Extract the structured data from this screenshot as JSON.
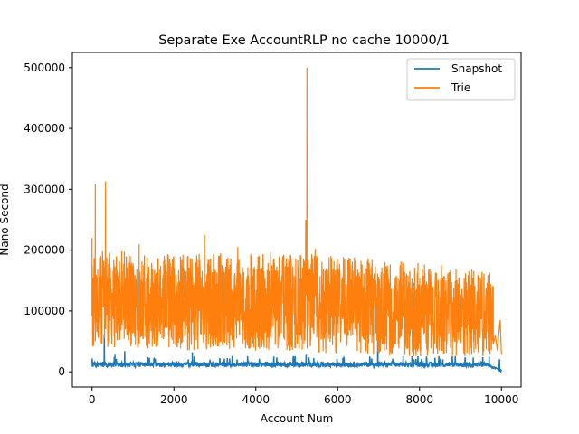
{
  "chart_data": {
    "type": "line",
    "title": "Separate Exe AccountRLP no cache 10000/1",
    "xlabel": "Account Num",
    "ylabel": "Nano Second",
    "xlim": [
      -480,
      10480
    ],
    "ylim": [
      -25000,
      525000
    ],
    "x_ticks": [
      0,
      2000,
      4000,
      6000,
      8000,
      10000
    ],
    "x_tick_labels": [
      "0",
      "2000",
      "4000",
      "6000",
      "8000",
      "10000"
    ],
    "y_ticks": [
      0,
      100000,
      200000,
      300000,
      400000,
      500000
    ],
    "y_tick_labels": [
      "0",
      "100000",
      "200000",
      "300000",
      "400000",
      "500000"
    ],
    "grid": false,
    "legend_position": "top-right",
    "series": [
      {
        "name": "Snapshot",
        "color": "#1f77b4",
        "pattern": {
          "x_end": 10000,
          "baseline": 12000,
          "band_low": 5000,
          "band_high": 20000,
          "taper_start": 9600,
          "taper_end_value": 2000,
          "spikes": [
            {
              "x": 5,
              "y": 22000
            },
            {
              "x": 300,
              "y": 62000
            },
            {
              "x": 560,
              "y": 28000
            },
            {
              "x": 800,
              "y": 34000
            },
            {
              "x": 2450,
              "y": 32000
            },
            {
              "x": 5230,
              "y": 28000
            },
            {
              "x": 6980,
              "y": 58000
            },
            {
              "x": 7600,
              "y": 26000
            },
            {
              "x": 9700,
              "y": 25000
            },
            {
              "x": 9950,
              "y": 20000
            }
          ]
        }
      },
      {
        "name": "Trie",
        "color": "#ff7f0e",
        "pattern": {
          "x_end": 10000,
          "dense_end": 9800,
          "segments": [
            {
              "x": 0,
              "mean": 115000,
              "low": 55000,
              "high": 175000
            },
            {
              "x": 2000,
              "mean": 112000,
              "low": 50000,
              "high": 170000
            },
            {
              "x": 4000,
              "mean": 113000,
              "low": 50000,
              "high": 172000
            },
            {
              "x": 6000,
              "mean": 110000,
              "low": 45000,
              "high": 168000
            },
            {
              "x": 8000,
              "mean": 100000,
              "low": 40000,
              "high": 155000
            },
            {
              "x": 9800,
              "mean": 95000,
              "low": 40000,
              "high": 140000
            }
          ],
          "tail": [
            {
              "x": 9800,
              "y": 45000
            },
            {
              "x": 9850,
              "y": 60000
            },
            {
              "x": 9900,
              "y": 35000
            },
            {
              "x": 9940,
              "y": 65000
            },
            {
              "x": 9970,
              "y": 85000
            },
            {
              "x": 10000,
              "y": 28000
            }
          ],
          "spikes": [
            {
              "x": 0,
              "y": 220000
            },
            {
              "x": 80,
              "y": 308000
            },
            {
              "x": 330,
              "y": 313000
            },
            {
              "x": 1150,
              "y": 210000
            },
            {
              "x": 2750,
              "y": 225000
            },
            {
              "x": 3560,
              "y": 205000
            },
            {
              "x": 5250,
              "y": 500000
            },
            {
              "x": 5220,
              "y": 250000
            },
            {
              "x": 5450,
              "y": 202000
            }
          ]
        }
      }
    ]
  }
}
